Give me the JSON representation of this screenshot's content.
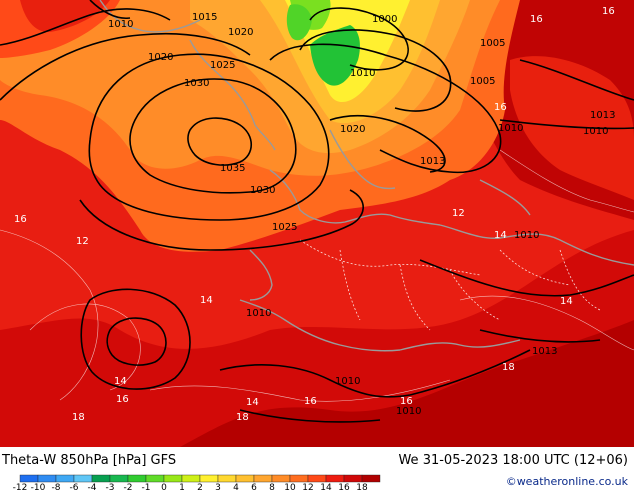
{
  "map": {
    "isobar_labels": [
      {
        "text": "1010",
        "id": "isobar-label-1010-nw"
      },
      {
        "text": "1015",
        "id": "isobar-label-1015-nw"
      },
      {
        "text": "1020",
        "id": "isobar-label-1020-nw"
      },
      {
        "text": "1020",
        "id": "isobar-label-1020-n"
      },
      {
        "text": "1025",
        "id": "isobar-label-1025"
      },
      {
        "text": "1030",
        "id": "isobar-label-1030"
      },
      {
        "text": "1035",
        "id": "isobar-label-1035"
      },
      {
        "text": "1030",
        "id": "isobar-label-1030-b"
      },
      {
        "text": "1025",
        "id": "isobar-label-1025-b"
      },
      {
        "text": "1000",
        "id": "isobar-label-1000"
      },
      {
        "text": "1005",
        "id": "isobar-label-1005-a"
      },
      {
        "text": "1005",
        "id": "isobar-label-1005-b"
      },
      {
        "text": "1010",
        "id": "isobar-label-1010-center"
      },
      {
        "text": "1020",
        "id": "isobar-label-1020-center"
      },
      {
        "text": "1013",
        "id": "isobar-label-1013-center"
      },
      {
        "text": "1013",
        "id": "isobar-label-1013-e"
      },
      {
        "text": "1010",
        "id": "isobar-label-1010-e"
      },
      {
        "text": "1010",
        "id": "isobar-label-1010-e2"
      },
      {
        "text": "1010",
        "id": "isobar-label-1010-e3"
      },
      {
        "text": "1013",
        "id": "isobar-label-1013-se"
      },
      {
        "text": "1010",
        "id": "isobar-label-1010-s"
      },
      {
        "text": "1010",
        "id": "isobar-label-1010-s2"
      },
      {
        "text": "1010",
        "id": "isobar-label-1010-s3"
      }
    ],
    "theta_labels": [
      {
        "text": "16",
        "id": "theta-label-16-ne"
      },
      {
        "text": "16",
        "id": "theta-label-16-e"
      },
      {
        "text": "16",
        "id": "theta-label-16-w"
      },
      {
        "text": "12",
        "id": "theta-label-12-w"
      },
      {
        "text": "14",
        "id": "theta-label-14-sw"
      },
      {
        "text": "14",
        "id": "theta-label-14-sw2"
      },
      {
        "text": "16",
        "id": "theta-label-16-sw"
      },
      {
        "text": "18",
        "id": "theta-label-18-sw"
      },
      {
        "text": "14",
        "id": "theta-label-14-c"
      },
      {
        "text": "14",
        "id": "theta-label-14-e"
      },
      {
        "text": "16",
        "id": "theta-label-16-s"
      },
      {
        "text": "18",
        "id": "theta-label-18-s"
      },
      {
        "text": "18",
        "id": "theta-label-18-se"
      },
      {
        "text": "16",
        "id": "theta-label-16-se"
      },
      {
        "text": "14",
        "id": "theta-label-14-se"
      },
      {
        "text": "12",
        "id": "theta-label-12-c"
      },
      {
        "text": "16",
        "id": "theta-label-16-n"
      }
    ]
  },
  "footer": {
    "title_left": "Theta-W 850hPa [hPa] GFS",
    "title_right": "We 31-05-2023 18:00 UTC (12+06)",
    "credit": "©weatheronline.co.uk"
  },
  "colorbar": {
    "ticks": [
      "-12",
      "-10",
      "-8",
      "-6",
      "-4",
      "-3",
      "-2",
      "-1",
      "0",
      "1",
      "2",
      "3",
      "4",
      "6",
      "8",
      "10",
      "12",
      "14",
      "16",
      "18"
    ],
    "colors": [
      "#1e6ff0",
      "#2f8cf2",
      "#3fa8f4",
      "#5fc6f6",
      "#07a050",
      "#18b850",
      "#30cc30",
      "#60dc28",
      "#98e818",
      "#cef018",
      "#fff030",
      "#ffd830",
      "#ffc030",
      "#ffa630",
      "#ff8c28",
      "#ff6e20",
      "#ff4a18",
      "#ee1c10",
      "#d00808",
      "#b00000"
    ]
  }
}
